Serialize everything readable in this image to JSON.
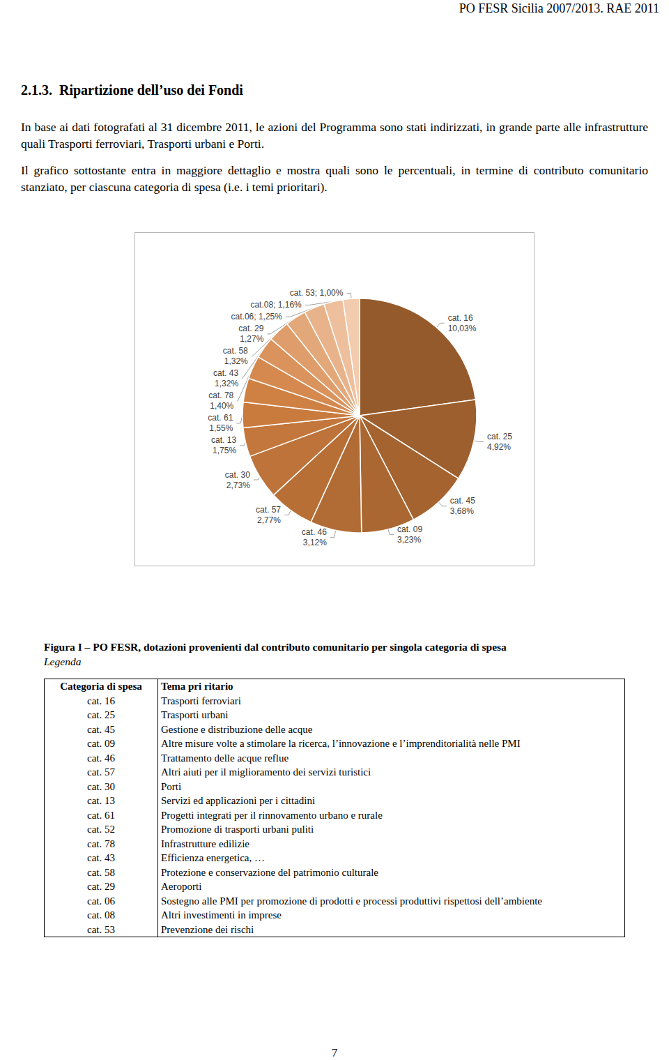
{
  "header": {
    "running_title": "PO FESR Sicilia 2007/2013. RAE 2011"
  },
  "section": {
    "number": "2.1.3.",
    "title": "Ripartizione dell’uso dei Fondi"
  },
  "paragraphs": [
    "In base ai dati fotografati al 31 dicembre 2011, le azioni del Programma sono stati indirizzati, in grande parte alle infrastrutture quali Trasporti ferroviari, Trasporti urbani e Porti.",
    "Il grafico sottostante entra in maggiore dettaglio e mostra quali sono le percentuali, in termine di contributo comunitario stanziato, per ciascuna categoria di spesa (i.e. i temi prioritari)."
  ],
  "chart_data": {
    "type": "pie",
    "labels": [
      "cat. 16\n10,03%",
      "cat. 25\n4,92%",
      "cat. 45\n3,68%",
      "cat. 09\n3,23%",
      "cat. 46\n3,12%",
      "cat. 57\n2,77%",
      "cat. 30\n2,73%",
      "cat. 13\n1,75%",
      "cat. 61\n1,55%",
      null,
      "cat. 78\n1,40%",
      "cat. 43\n1,32%",
      "cat. 58\n1,32%",
      "cat. 29\n1,27%",
      "cat.06; 1,25%",
      "cat.08; 1,16%",
      "cat. 53; 1,00%"
    ],
    "values": [
      10.03,
      4.92,
      3.68,
      3.23,
      3.12,
      2.77,
      2.73,
      1.75,
      1.55,
      1.45,
      1.4,
      1.32,
      1.32,
      1.27,
      1.25,
      1.16,
      1.0
    ],
    "colors": [
      "#955a2b",
      "#9d5f2d",
      "#a5632f",
      "#ab6732",
      "#b16b34",
      "#b76f36",
      "#bd7339",
      "#c3773c",
      "#c97b3e",
      "#cf8144",
      "#d5894f",
      "#da935c",
      "#de9d6a",
      "#e3a879",
      "#e8b38a",
      "#edbf9c",
      "#f3cbae"
    ]
  },
  "caption": {
    "title": "Figura I – PO FESR, dotazioni provenienti dal contributo comunitario per singola categoria di spesa",
    "legend_label": "Legenda"
  },
  "table": {
    "header": [
      "Categoria di spesa",
      "Tema pri ritario"
    ],
    "rows": [
      [
        "cat. 16",
        "Trasporti ferroviari"
      ],
      [
        "cat. 25",
        "Trasporti urbani"
      ],
      [
        "cat. 45",
        "Gestione e distribuzione delle acque"
      ],
      [
        "cat. 09",
        "Altre misure volte a stimolare la ricerca, l’innovazione e l’imprenditorialità nelle PMI"
      ],
      [
        "cat. 46",
        "Trattamento delle acque reflue"
      ],
      [
        "cat. 57",
        "Altri aiuti per il miglioramento dei servizi turistici"
      ],
      [
        "cat. 30",
        "Porti"
      ],
      [
        "cat. 13",
        "Servizi ed applicazioni per i cittadini"
      ],
      [
        "cat. 61",
        "Progetti integrati per il rinnovamento urbano e rurale"
      ],
      [
        "cat. 52",
        "Promozione di trasporti urbani puliti"
      ],
      [
        "cat. 78",
        "Infrastrutture edilizie"
      ],
      [
        "cat. 43",
        "Efficienza energetica, …"
      ],
      [
        "cat. 58",
        "Protezione e conservazione del patrimonio culturale"
      ],
      [
        "cat. 29",
        "Aeroporti"
      ],
      [
        "cat. 06",
        "Sostegno alle PMI per promozione di prodotti e processi produttivi rispettosi dell’ambiente"
      ],
      [
        "cat. 08",
        "Altri investimenti in imprese"
      ],
      [
        "cat. 53",
        "Prevenzione dei rischi"
      ]
    ]
  },
  "page_number": 7
}
